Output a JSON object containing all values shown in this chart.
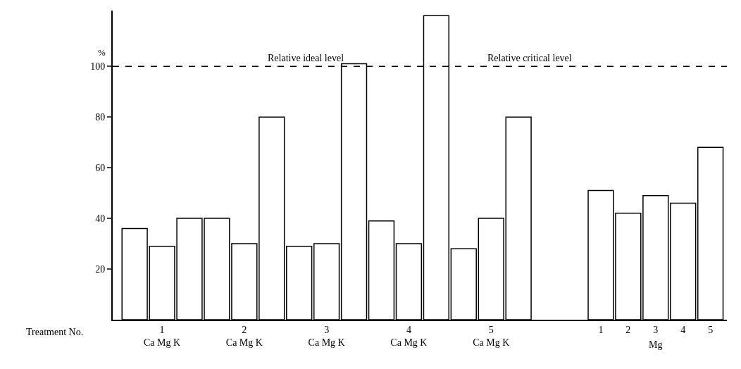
{
  "chart_data": {
    "type": "bar",
    "ylabel": "%",
    "xlabel": "Treatment No.",
    "categories": [
      null,
      "1\nCa Mg K",
      null,
      null,
      "2\nCa Mg K",
      null,
      null,
      "3\nCa Mg K",
      null,
      null,
      "4\nCa Mg K",
      null,
      null,
      "5\nCa Mg K",
      null,
      null,
      null,
      "1",
      "2",
      "3",
      "4",
      "5"
    ],
    "series": [
      {
        "color": "#ffffff",
        "values": [
          36,
          29,
          40,
          40,
          30,
          80,
          29,
          30,
          101,
          39,
          30,
          120,
          28,
          40,
          80,
          null,
          null,
          51,
          42,
          49,
          46,
          68
        ]
      }
    ],
    "annotations": [
      "Mg",
      "Relative critical level"
    ],
    "ref_lines": [
      {
        "axis": "y",
        "value": 100,
        "label": "Relative ideal level",
        "line_style": "dashed",
        "color": "#000000"
      }
    ],
    "ylim": [
      0,
      122
    ],
    "yticks": [
      20,
      40,
      60,
      80,
      100
    ],
    "legend": false
  }
}
